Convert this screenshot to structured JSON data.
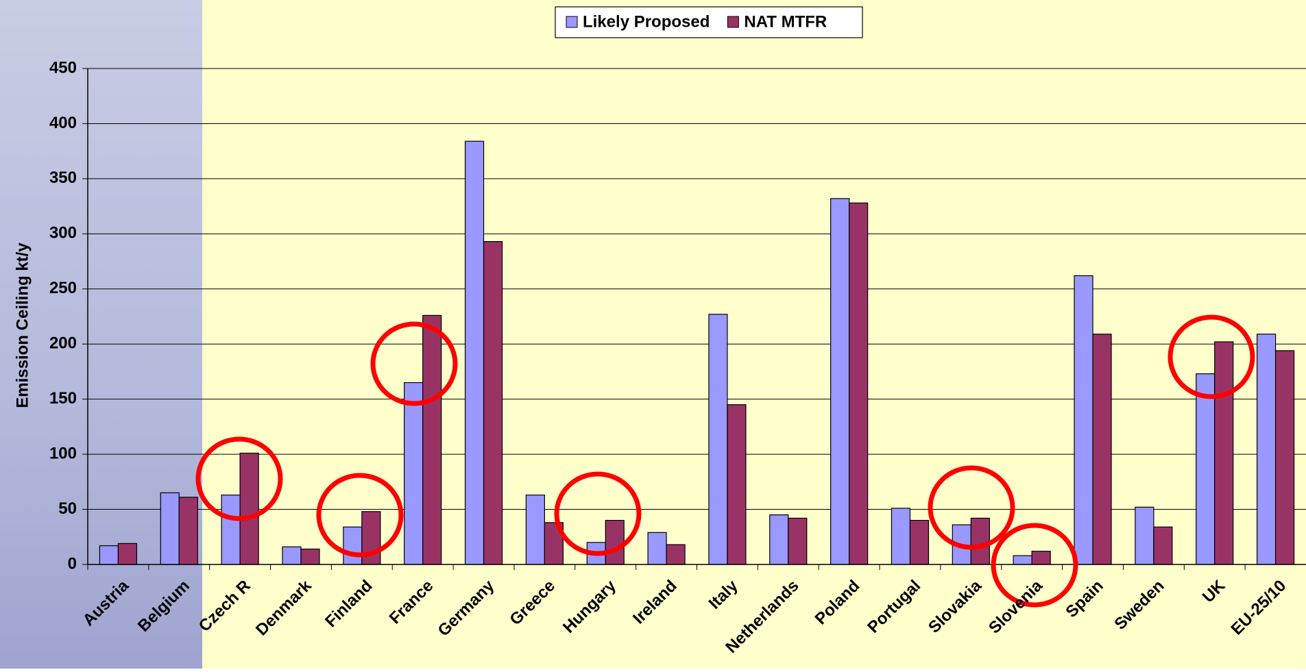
{
  "chart_data": {
    "type": "bar",
    "y_label": "Emission Ceiling kt/y",
    "categories": [
      "Austria",
      "Belgium",
      "Czech R",
      "Denmark",
      "Finland",
      "France",
      "Germany",
      "Greece",
      "Hungary",
      "Ireland",
      "Italy",
      "Netherlands",
      "Poland",
      "Portugal",
      "Slovakia",
      "Slovenia",
      "Spain",
      "Sweden",
      "UK",
      "EU-25/10"
    ],
    "series": [
      {
        "name": "Likely Proposed",
        "color": "#9999ff",
        "values": [
          17,
          65,
          63,
          16,
          34,
          165,
          384,
          63,
          20,
          29,
          227,
          45,
          332,
          51,
          36,
          8,
          262,
          52,
          173,
          209
        ]
      },
      {
        "name": "NAT MTFR",
        "color": "#993366",
        "values": [
          19,
          61,
          101,
          14,
          48,
          226,
          293,
          38,
          40,
          18,
          145,
          42,
          328,
          40,
          42,
          12,
          209,
          34,
          202,
          194
        ]
      }
    ],
    "ylim": [
      0,
      450
    ],
    "yticks": [
      0,
      50,
      100,
      150,
      200,
      250,
      300,
      350,
      400,
      450
    ],
    "grid": true,
    "legend": "top"
  }
}
